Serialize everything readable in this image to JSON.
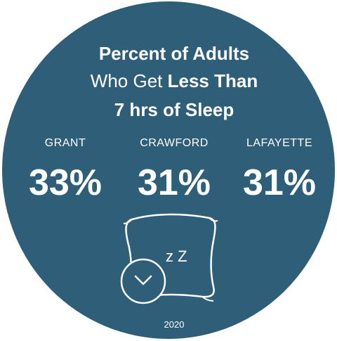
{
  "title": {
    "line1": "Percent of Adults",
    "line2_regular": "Who Get ",
    "line2_bold": "Less Than",
    "line3": "7 hrs of Sleep"
  },
  "stats": [
    {
      "county": "GRANT",
      "percent": "33%"
    },
    {
      "county": "CRAWFORD",
      "percent": "31%"
    },
    {
      "county": "LAFAYETTE",
      "percent": "31%"
    }
  ],
  "icon": {
    "name": "pillow-clock-icon",
    "zzz": "z Z"
  },
  "year": "2020",
  "colors": {
    "background": "#2f5f78",
    "text": "#ffffff"
  }
}
